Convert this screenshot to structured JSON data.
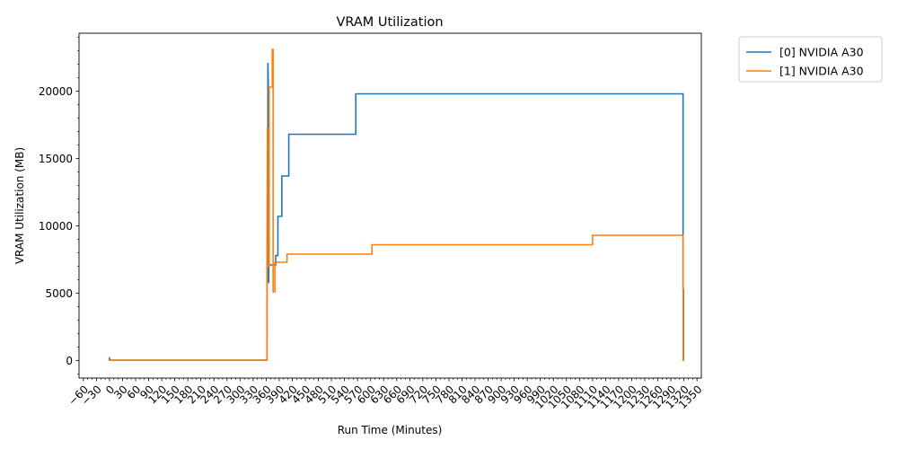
{
  "chart_data": {
    "type": "line",
    "title": "VRAM Utilization",
    "xlabel": "Run Time (Minutes)",
    "ylabel": "VRAM Utilization (MB)",
    "xlim": [
      -70,
      1360
    ],
    "ylim": [
      -1300,
      24300
    ],
    "x_ticks": [
      -60,
      -30,
      0,
      30,
      60,
      90,
      120,
      150,
      180,
      210,
      240,
      270,
      300,
      330,
      360,
      390,
      420,
      450,
      480,
      510,
      540,
      570,
      600,
      630,
      660,
      690,
      720,
      750,
      780,
      810,
      840,
      870,
      900,
      930,
      960,
      990,
      1020,
      1050,
      1080,
      1110,
      1140,
      1170,
      1200,
      1230,
      1260,
      1290,
      1320,
      1350
    ],
    "y_ticks": [
      0,
      5000,
      10000,
      15000,
      20000
    ],
    "grid": false,
    "legend_position": "outside-top-right",
    "series": [
      {
        "name": "[0] NVIDIA A30",
        "color": "#1f77b4",
        "x": [
          0,
          0,
          1,
          362,
          362,
          363,
          363,
          364,
          364,
          365,
          365,
          366,
          366,
          367,
          367,
          370,
          370,
          382,
          382,
          387,
          387,
          396,
          396,
          412,
          412,
          566,
          566,
          714,
          714,
          1318,
          1318,
          1319,
          1319
        ],
        "y": [
          250,
          30,
          30,
          30,
          5000,
          17300,
          9800,
          7100,
          22100,
          20300,
          5800,
          5800,
          7100,
          7100,
          7100,
          7100,
          7100,
          7100,
          7800,
          7800,
          10700,
          10700,
          13700,
          13700,
          16800,
          16800,
          19800,
          19800,
          19800,
          19800,
          5300,
          5300,
          0
        ]
      },
      {
        "name": "[1] NVIDIA A30",
        "color": "#ff7f0e",
        "x": [
          0,
          362,
          362,
          363,
          363,
          367,
          367,
          374,
          374,
          376,
          376,
          380,
          380,
          383,
          383,
          385,
          385,
          408,
          408,
          603,
          603,
          1110,
          1110,
          1318,
          1318,
          1319
        ],
        "y": [
          30,
          30,
          1500,
          17300,
          7000,
          7000,
          20300,
          20300,
          23100,
          23100,
          5100,
          5100,
          7300,
          7300,
          7300,
          7300,
          7300,
          7300,
          7900,
          7900,
          8600,
          8600,
          9300,
          9300,
          0,
          0
        ]
      }
    ]
  }
}
